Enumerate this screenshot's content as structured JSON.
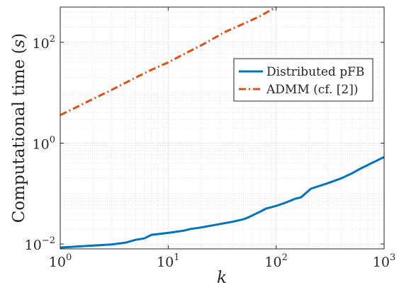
{
  "chart_data": {
    "type": "line",
    "title": "",
    "xlabel": "k",
    "ylabel": "Computational time (s)",
    "ylabel_parts": {
      "main": "Computational time",
      "open": "(",
      "var": "s",
      "close": ")"
    },
    "xscale": "log",
    "yscale": "log",
    "xlim": [
      1,
      1000
    ],
    "ylim": [
      0.008,
      500
    ],
    "grid": true,
    "minor_grid": true,
    "legend_position": "top-right",
    "x_ticks": [
      {
        "value": 1,
        "base": "10",
        "exp": "0"
      },
      {
        "value": 10,
        "base": "10",
        "exp": "1"
      },
      {
        "value": 100,
        "base": "10",
        "exp": "2"
      },
      {
        "value": 1000,
        "base": "10",
        "exp": "3"
      }
    ],
    "y_ticks": [
      {
        "value": 0.01,
        "base": "10",
        "exp": "−2"
      },
      {
        "value": 1,
        "base": "10",
        "exp": "0"
      },
      {
        "value": 100,
        "base": "10",
        "exp": "2"
      }
    ],
    "series": [
      {
        "name": "Distributed pFB",
        "color": "#0072BD",
        "dash": "solid",
        "x": [
          1,
          2,
          3,
          4,
          5,
          6,
          7,
          8,
          10,
          14,
          16,
          20,
          30,
          40,
          50,
          55,
          65,
          70,
          80,
          100,
          120,
          150,
          170,
          210,
          300,
          400,
          500,
          600,
          800,
          1000
        ],
        "y": [
          0.0085,
          0.0093,
          0.0098,
          0.0106,
          0.0121,
          0.0129,
          0.0152,
          0.0157,
          0.0166,
          0.0184,
          0.0198,
          0.0212,
          0.0248,
          0.0278,
          0.031,
          0.0335,
          0.04,
          0.043,
          0.05,
          0.057,
          0.065,
          0.079,
          0.084,
          0.125,
          0.16,
          0.2,
          0.25,
          0.31,
          0.42,
          0.53
        ]
      },
      {
        "name": "ADMM (cf. [2])",
        "color": "#D95319",
        "dash": "dashdot",
        "x": [
          1,
          1.5,
          2,
          3,
          5,
          7,
          10,
          15,
          20,
          34,
          50,
          70,
          100
        ],
        "y": [
          3.6,
          5.5,
          7.5,
          11.4,
          20,
          28.5,
          40,
          63,
          86,
          162,
          234,
          325,
          500
        ]
      }
    ]
  }
}
